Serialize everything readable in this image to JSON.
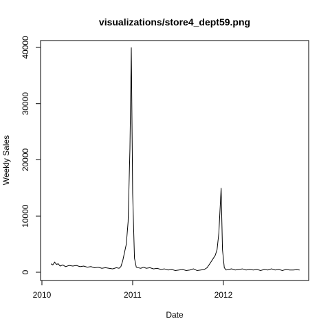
{
  "chart_data": {
    "type": "line",
    "title": "visualizations/store4_dept59.png",
    "x_label": "Date",
    "y_label": "Weekly Sales",
    "x": [
      2010.1,
      2010.12,
      2010.14,
      2010.16,
      2010.18,
      2010.2,
      2010.23,
      2010.26,
      2010.3,
      2010.34,
      2010.38,
      2010.42,
      2010.46,
      2010.5,
      2010.54,
      2010.58,
      2010.62,
      2010.66,
      2010.7,
      2010.74,
      2010.78,
      2010.82,
      2010.85,
      2010.87,
      2010.89,
      2010.91,
      2010.93,
      2010.95,
      2010.97,
      2010.985,
      2011.0,
      2011.02,
      2011.04,
      2011.06,
      2011.09,
      2011.12,
      2011.15,
      2011.19,
      2011.23,
      2011.27,
      2011.31,
      2011.35,
      2011.39,
      2011.43,
      2011.47,
      2011.51,
      2011.55,
      2011.59,
      2011.63,
      2011.67,
      2011.71,
      2011.75,
      2011.79,
      2011.82,
      2011.85,
      2011.87,
      2011.89,
      2011.91,
      2011.93,
      2011.95,
      2011.975,
      2011.99,
      2012.01,
      2012.03,
      2012.06,
      2012.09,
      2012.13,
      2012.17,
      2012.21,
      2012.25,
      2012.29,
      2012.33,
      2012.37,
      2012.41,
      2012.45,
      2012.49,
      2012.53,
      2012.57,
      2012.61,
      2012.65,
      2012.69,
      2012.73,
      2012.77,
      2012.81,
      2012.84
    ],
    "series": [
      {
        "name": "Weekly Sales",
        "color": "#000000",
        "values": [
          1500,
          1300,
          1800,
          1400,
          1500,
          1100,
          1300,
          1000,
          1200,
          1100,
          1200,
          1000,
          1100,
          900,
          1000,
          800,
          900,
          700,
          800,
          700,
          600,
          800,
          700,
          1000,
          2000,
          3500,
          5000,
          9000,
          22000,
          40000,
          14000,
          2500,
          900,
          800,
          700,
          900,
          700,
          800,
          600,
          700,
          500,
          600,
          400,
          500,
          300,
          400,
          500,
          300,
          400,
          600,
          300,
          400,
          500,
          800,
          1500,
          2000,
          2500,
          3000,
          4000,
          7000,
          15000,
          4000,
          800,
          400,
          500,
          600,
          400,
          500,
          600,
          400,
          500,
          400,
          500,
          300,
          500,
          400,
          600,
          400,
          500,
          300,
          500,
          400,
          400,
          450,
          400
        ]
      }
    ],
    "xlim": [
      2009.985,
      2012.94
    ],
    "xticks": [
      2010,
      2011,
      2012
    ],
    "ylim": [
      -1470,
      41220
    ],
    "yticks": [
      0,
      10000,
      20000,
      30000,
      40000
    ]
  }
}
